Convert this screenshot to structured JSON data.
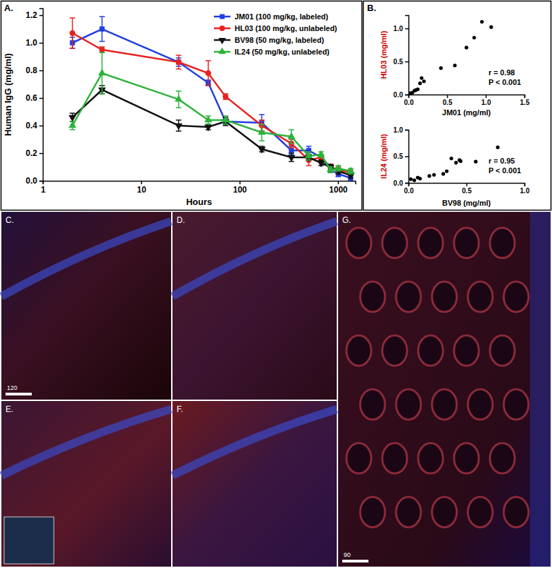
{
  "chart_data": [
    {
      "type": "line",
      "title": "A.",
      "x_label": "Hours",
      "y_label": "Human IgG (mg/ml)",
      "log": "x",
      "legend": "upper right",
      "grid": false,
      "x": [
        2,
        4,
        24,
        48,
        72,
        168,
        336,
        504,
        672,
        840,
        1008,
        1344
      ],
      "xlim": [
        1,
        1500
      ],
      "xticks": [
        1,
        10,
        100,
        1000
      ],
      "ylim": [
        0,
        1.25
      ],
      "yticks": [
        {
          "value": 0,
          "label": "0.0"
        },
        0.2,
        0.4,
        0.6,
        0.8,
        {
          "value": 1,
          "label": "1.0"
        },
        1.2
      ],
      "series": [
        {
          "name": "JM01 (100 mg/kg, labeled)",
          "color": "#1f3fe0",
          "marker": "square",
          "values": [
            1.0,
            1.1,
            0.86,
            0.71,
            0.43,
            0.42,
            0.22,
            0.22,
            0.17,
            0.08,
            0.05,
            0.02
          ],
          "errors": [
            0.04,
            0.09,
            0.03,
            0.02,
            0.02,
            0.06,
            0.03,
            0.03,
            0.02,
            0.02,
            0.02,
            0.02
          ]
        },
        {
          "name": "HL03 (100 mg/kg, unlabeled)",
          "color": "#e8211f",
          "marker": "circle",
          "values": [
            1.07,
            0.95,
            0.86,
            0.78,
            0.61,
            0.4,
            0.27,
            0.15,
            0.17,
            0.1,
            0.08,
            0.06
          ],
          "errors": [
            0.11,
            0.02,
            0.05,
            0.09,
            0.02,
            0.04,
            0.03,
            0.04,
            0.02,
            0.02,
            0.02,
            0.02
          ]
        },
        {
          "name": "BV98 (50 mg/kg, labeled)",
          "color": "#111111",
          "marker": "triangle-down",
          "values": [
            0.46,
            0.66,
            0.4,
            0.39,
            0.43,
            0.23,
            0.17,
            0.17,
            0.13,
            0.1,
            0.07,
            0.04
          ],
          "errors": [
            0.03,
            0.03,
            0.04,
            0.02,
            0.03,
            0.02,
            0.03,
            0.02,
            0.02,
            0.02,
            0.02,
            0.02
          ]
        },
        {
          "name": "IL24 (50 mg/kg, unlabeled)",
          "color": "#2db23a",
          "marker": "triangle-up",
          "values": [
            0.4,
            0.78,
            0.59,
            0.44,
            0.44,
            0.35,
            0.32,
            0.18,
            0.19,
            0.08,
            0.09,
            0.07
          ],
          "errors": [
            0.03,
            0.15,
            0.06,
            0.03,
            0.03,
            0.06,
            0.05,
            0.03,
            0.02,
            0.02,
            0.02,
            0.02
          ]
        }
      ]
    },
    {
      "type": "scatter",
      "title": "B.",
      "x_label": "JM01 (mg/ml)",
      "y_label": "HL03 (mg/ml)",
      "color": "#000000",
      "marker": "circle",
      "x": [
        0.0,
        0.02,
        0.05,
        0.08,
        0.1,
        0.12,
        0.15,
        0.17,
        0.2,
        0.42,
        0.6,
        0.75,
        0.85,
        0.95,
        1.07
      ],
      "values": [
        0.01,
        0.02,
        0.03,
        0.06,
        0.07,
        0.08,
        0.17,
        0.25,
        0.2,
        0.4,
        0.44,
        0.71,
        0.86,
        1.1,
        1.02
      ],
      "xlim": [
        0,
        1.5
      ],
      "xticks": [
        {
          "value": 0,
          "label": "0.0"
        },
        0.5,
        {
          "value": 1,
          "label": "1.0"
        },
        1.5
      ],
      "ylim": [
        0,
        1.2
      ],
      "yticks": [
        {
          "value": 0,
          "label": "0.0"
        },
        0.5,
        {
          "value": 1,
          "label": "1.0"
        }
      ],
      "annotations": [
        "r = 0.98",
        "P < 0.001"
      ]
    },
    {
      "type": "scatter",
      "x_label": "BV98 (mg/ml)",
      "y_label": "IL24 (mg/ml)",
      "color": "#000000",
      "marker": "circle",
      "x": [
        0.02,
        0.05,
        0.08,
        0.1,
        0.18,
        0.22,
        0.3,
        0.33,
        0.37,
        0.41,
        0.44,
        0.45,
        0.58,
        0.77
      ],
      "values": [
        0.07,
        0.05,
        0.1,
        0.08,
        0.13,
        0.15,
        0.17,
        0.22,
        0.46,
        0.38,
        0.43,
        0.41,
        0.4,
        0.67
      ],
      "xlim": [
        0,
        1
      ],
      "xticks": [
        {
          "value": 0,
          "label": "0.0"
        },
        0.5,
        {
          "value": 1,
          "label": "1.0"
        }
      ],
      "ylim": [
        0,
        1
      ],
      "yticks": [
        {
          "value": 0,
          "label": "0.0"
        },
        0.5,
        {
          "value": 1,
          "label": "1.0"
        }
      ],
      "annotations": [
        "r = 0.95",
        "P < 0.001"
      ]
    }
  ],
  "panels": [
    {
      "label": "C.",
      "scale_bar": "120"
    },
    {
      "label": "D."
    },
    {
      "label": "E."
    },
    {
      "label": "F."
    },
    {
      "label": "G.",
      "scale_bar": "90"
    }
  ]
}
